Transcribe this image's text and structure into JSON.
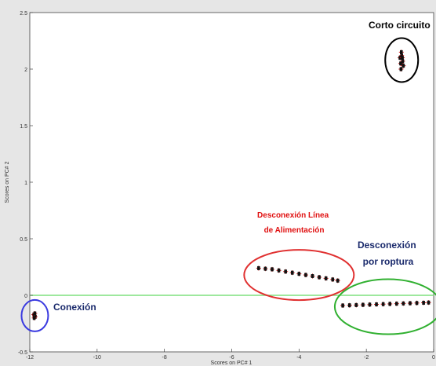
{
  "chart_data": {
    "type": "scatter",
    "xlabel": "Scores on PC# 1",
    "ylabel": "Scores on PC# 2",
    "xlim": [
      -12,
      0
    ],
    "ylim": [
      -0.5,
      2.5
    ],
    "xticks": [
      "-12",
      "-10",
      "-8",
      "-6",
      "-4",
      "-2",
      "0"
    ],
    "yticks": [
      "-0.5",
      "0",
      "0.5",
      "1",
      "1.5",
      "2",
      "2.5"
    ],
    "grid": false,
    "reference_line": {
      "y": 0,
      "color": "#7fe07f"
    },
    "clusters": [
      {
        "label": "Conexión",
        "label_color": "#1a2a6c",
        "ellipse_color": "#3a3ae0",
        "center": [
          -11.85,
          -0.18
        ],
        "points": [
          [
            -11.88,
            -0.17
          ],
          [
            -11.86,
            -0.18
          ],
          [
            -11.84,
            -0.19
          ],
          [
            -11.87,
            -0.2
          ],
          [
            -11.85,
            -0.16
          ]
        ]
      },
      {
        "label": "Corto circuito",
        "label_color": "#000000",
        "ellipse_color": "#000000",
        "center": [
          -0.95,
          2.08
        ],
        "points": [
          [
            -1.0,
            2.1
          ],
          [
            -0.98,
            2.05
          ],
          [
            -0.95,
            2.12
          ],
          [
            -0.92,
            2.07
          ],
          [
            -0.9,
            2.03
          ],
          [
            -0.97,
            2.0
          ],
          [
            -0.93,
            2.1
          ],
          [
            -0.96,
            2.15
          ]
        ]
      },
      {
        "label": "Desconexión Línea de Alimentación",
        "label_color": "#e01010",
        "ellipse_color": "#e03030",
        "center": [
          -4.0,
          0.18
        ],
        "points": [
          [
            -5.2,
            0.24
          ],
          [
            -5.0,
            0.235
          ],
          [
            -4.8,
            0.23
          ],
          [
            -4.6,
            0.22
          ],
          [
            -4.4,
            0.21
          ],
          [
            -4.2,
            0.2
          ],
          [
            -4.0,
            0.19
          ],
          [
            -3.8,
            0.18
          ],
          [
            -3.6,
            0.17
          ],
          [
            -3.4,
            0.16
          ],
          [
            -3.2,
            0.15
          ],
          [
            -3.0,
            0.14
          ],
          [
            -2.85,
            0.13
          ]
        ]
      },
      {
        "label": "Desconexión por roptura",
        "label_color": "#1a2a6c",
        "ellipse_color": "#30b030",
        "center": [
          -1.4,
          -0.08
        ],
        "points": [
          [
            -2.7,
            -0.09
          ],
          [
            -2.5,
            -0.088
          ],
          [
            -2.3,
            -0.086
          ],
          [
            -2.1,
            -0.084
          ],
          [
            -1.9,
            -0.082
          ],
          [
            -1.7,
            -0.08
          ],
          [
            -1.5,
            -0.078
          ],
          [
            -1.3,
            -0.076
          ],
          [
            -1.1,
            -0.074
          ],
          [
            -0.9,
            -0.072
          ],
          [
            -0.7,
            -0.07
          ],
          [
            -0.5,
            -0.068
          ],
          [
            -0.3,
            -0.066
          ],
          [
            -0.15,
            -0.064
          ]
        ]
      }
    ]
  }
}
